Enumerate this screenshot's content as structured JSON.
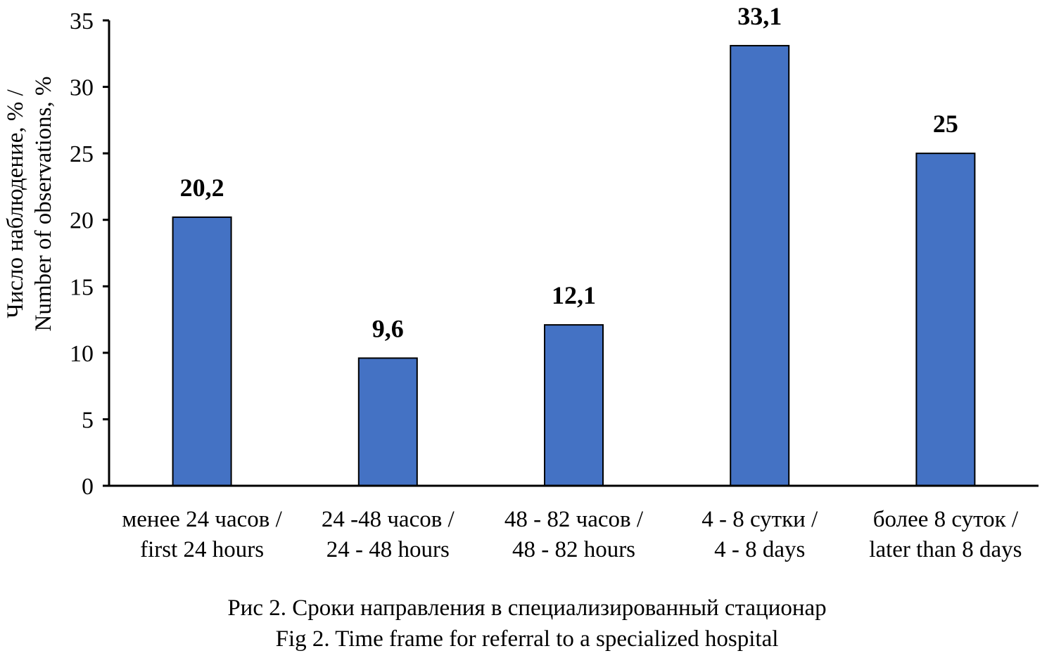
{
  "chart_data": {
    "type": "bar",
    "title": "",
    "ylabel_lines": [
      "Число наблюдение, % /",
      "Number of observations, %"
    ],
    "xlabel": "",
    "ylim": [
      0,
      35
    ],
    "yticks": [
      0,
      5,
      10,
      15,
      20,
      25,
      30,
      35
    ],
    "grid": false,
    "legend": "none",
    "bar_color": "#4472C4",
    "categories": [
      [
        "менее 24 часов /",
        "first 24 hours"
      ],
      [
        "24 -48 часов /",
        "24 - 48 hours"
      ],
      [
        "48 - 82 часов /",
        "48 - 82 hours"
      ],
      [
        "4 - 8 сутки /",
        "4 - 8 days"
      ],
      [
        "более 8 суток /",
        "later than 8 days"
      ]
    ],
    "values": [
      20.2,
      9.6,
      12.1,
      33.1,
      25
    ],
    "data_labels": [
      "20,2",
      "9,6",
      "12,1",
      "33,1",
      "25"
    ]
  },
  "caption": {
    "line1": "Рис 2. Сроки направления в специализированный стационар",
    "line2": "Fig 2. Time frame for referral to a specialized hospital"
  }
}
